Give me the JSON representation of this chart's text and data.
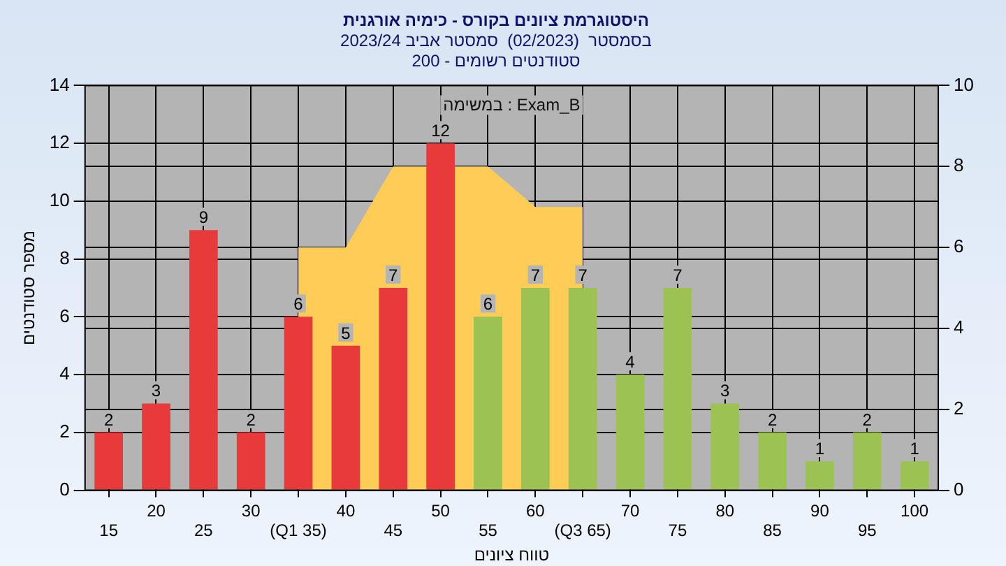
{
  "chart_data": {
    "type": "bar",
    "title": "היסטוגרמת ציונים בקורס - כימיה אורגנית",
    "subtitle": "בסמסטר  (02/2023)  סמסטר אביב 2023/24\nסטודנטים רשומים - 200",
    "xlabel": "טווח ציונים",
    "ylabel": "מספר סטודנטים",
    "annotations": [
      "במשימה : Exam_B"
    ],
    "categories": [
      "15",
      "20",
      "25",
      "30",
      "(Q1 35)",
      "40",
      "45",
      "50",
      "55",
      "60",
      "(Q3 65)",
      "70",
      "75",
      "80",
      "85",
      "90",
      "95",
      "100"
    ],
    "series": [
      {
        "colors": [
          "#e83a3a",
          "#e83a3a",
          "#e83a3a",
          "#e83a3a",
          "#e83a3a",
          "#e83a3a",
          "#e83a3a",
          "#e83a3a",
          "#9cc254",
          "#9cc254",
          "#9cc254",
          "#9cc254",
          "#9cc254",
          "#9cc254",
          "#9cc254",
          "#9cc254",
          "#9cc254",
          "#9cc254"
        ],
        "values": [
          2,
          3,
          9,
          2,
          6,
          5,
          7,
          12,
          6,
          7,
          7,
          4,
          7,
          3,
          2,
          1,
          2,
          1
        ],
        "value_labels": [
          "2",
          "3",
          "9",
          "2",
          "6",
          "5",
          "7",
          "12",
          "6",
          "7",
          "7",
          "4",
          "7",
          "3",
          "2",
          "1",
          "2",
          "1"
        ]
      },
      {
        "type": "area",
        "axis": "y2",
        "color": "#ffcc55",
        "values": [
          null,
          null,
          null,
          null,
          6,
          6,
          8,
          null,
          8,
          7,
          7,
          null,
          null,
          null,
          null,
          null,
          null,
          null
        ]
      }
    ],
    "ylim": [
      0,
      14
    ],
    "yticks": [
      0,
      2,
      4,
      6,
      8,
      10,
      12,
      14
    ],
    "y2lim": [
      0,
      10
    ],
    "y2ticks": [
      0,
      2,
      4,
      6,
      8,
      10
    ],
    "grid": true,
    "legend": false
  }
}
